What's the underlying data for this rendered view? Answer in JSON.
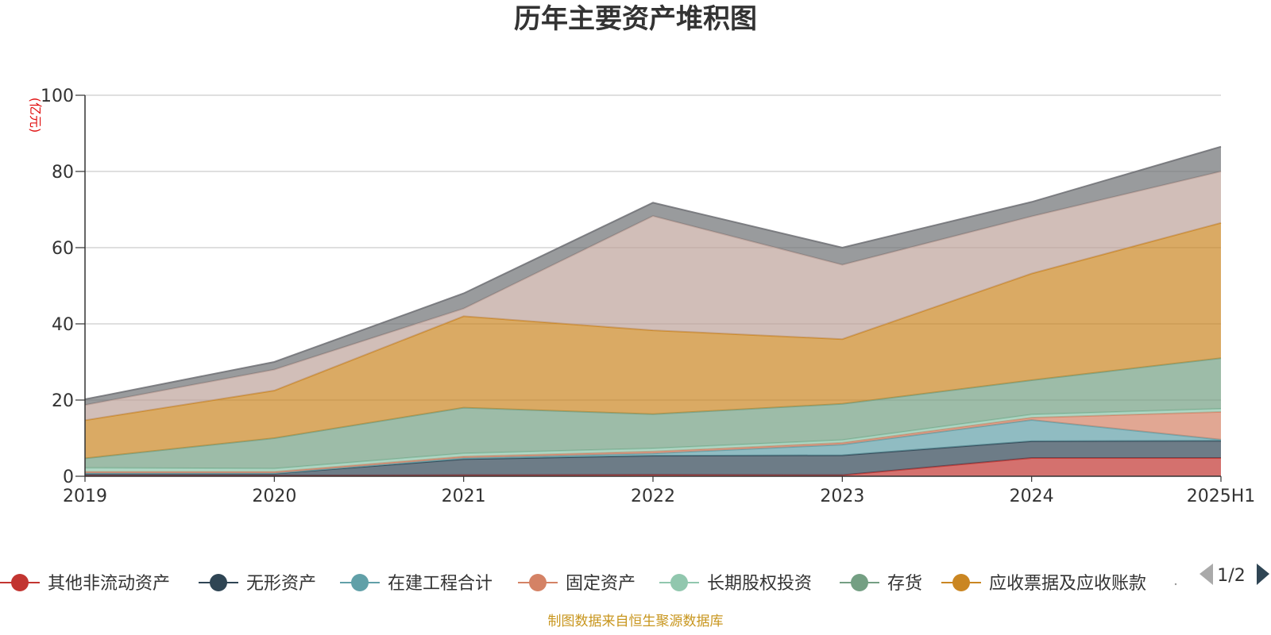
{
  "title": "历年主要资产堆积图",
  "source_note": "制图数据来自恒生聚源数据库",
  "legend_page": "1/2",
  "chart_data": {
    "type": "area",
    "stacked": true,
    "title": "历年主要资产堆积图",
    "ylabel": "(亿元)",
    "ylim": [
      0,
      100
    ],
    "yticks": [
      "0",
      "20",
      "40",
      "60",
      "80",
      "100"
    ],
    "categories": [
      "2019",
      "2020",
      "2021",
      "2022",
      "2023",
      "2024",
      "2025H1"
    ],
    "grid": true,
    "legend_position": "bottom",
    "series": [
      {
        "name": "其他非流动资产",
        "color": "#c23531",
        "values": [
          0.2,
          0.2,
          0.3,
          0.4,
          0.3,
          4.8,
          4.8
        ]
      },
      {
        "name": "无形资产",
        "color": "#2f4554",
        "values": [
          0.5,
          0.5,
          4.2,
          5.0,
          5.2,
          4.4,
          4.5
        ]
      },
      {
        "name": "在建工程合计",
        "color": "#61a0a8",
        "values": [
          0.1,
          0.1,
          0.3,
          0.6,
          2.8,
          5.6,
          0.3
        ]
      },
      {
        "name": "固定资产",
        "color": "#d48265",
        "values": [
          0.4,
          0.4,
          0.4,
          0.5,
          0.5,
          0.6,
          7.3
        ]
      },
      {
        "name": "长期股权投资",
        "color": "#91c7ae",
        "values": [
          1.0,
          0.8,
          0.8,
          0.8,
          0.7,
          0.8,
          0.8
        ]
      },
      {
        "name": "存货",
        "color": "#749f83",
        "values": [
          2.5,
          8.0,
          12.0,
          9.0,
          9.5,
          9.0,
          13.3
        ]
      },
      {
        "name": "应收票据及应收账款",
        "color": "#ca8622",
        "values": [
          10.0,
          12.5,
          24.0,
          22.0,
          17.0,
          28.0,
          35.5
        ]
      },
      {
        "name": "",
        "color": "#bda29a",
        "values": [
          4.0,
          5.5,
          2.0,
          30.0,
          19.5,
          15.0,
          13.5
        ]
      },
      {
        "name": "",
        "color": "#6e7074",
        "values": [
          1.5,
          2.0,
          4.0,
          3.5,
          4.5,
          3.8,
          6.5
        ]
      }
    ]
  }
}
